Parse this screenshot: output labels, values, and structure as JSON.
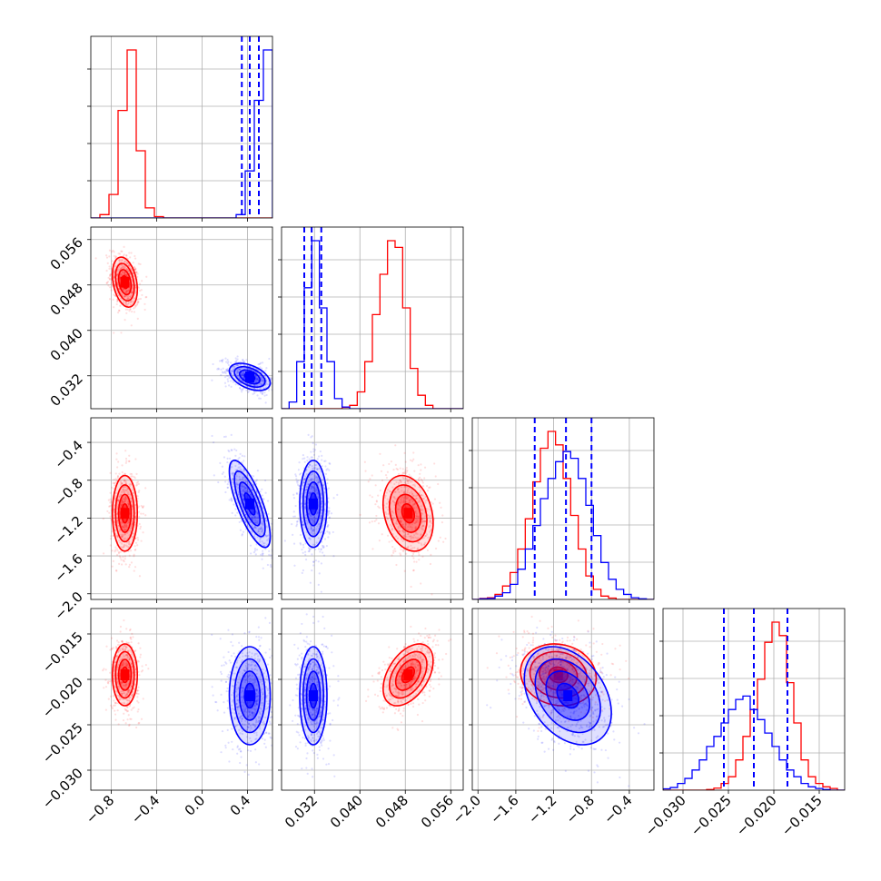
{
  "colors": {
    "red": "#ff0000",
    "blue": "#0000ff",
    "grid": "#b0b0b0",
    "frame": "#000000"
  },
  "chart_data": {
    "type": "corner",
    "grid": true,
    "parameters": [
      {
        "range": [
          -0.98,
          0.62
        ],
        "ticks": [
          -0.8,
          -0.4,
          0.0,
          0.4
        ],
        "tick_labels": [
          "−0.8",
          "−0.4",
          "0.0",
          "0.4"
        ]
      },
      {
        "range": [
          0.0262,
          0.0582
        ],
        "ticks": [
          0.032,
          0.04,
          0.048,
          0.056
        ],
        "tick_labels": [
          "0.032",
          "0.040",
          "0.048",
          "0.056"
        ]
      },
      {
        "range": [
          -2.06,
          -0.14
        ],
        "ticks": [
          -2.0,
          -1.6,
          -1.2,
          -0.8,
          -0.4
        ],
        "tick_labels": [
          "−2.0",
          "−1.6",
          "−1.2",
          "−0.8",
          "−0.4"
        ]
      },
      {
        "range": [
          -0.0322,
          -0.0122
        ],
        "ticks": [
          -0.03,
          -0.025,
          -0.02,
          -0.015
        ],
        "tick_labels": [
          "−0.030",
          "−0.025",
          "−0.020",
          "−0.015"
        ]
      }
    ],
    "series": [
      {
        "color": "red",
        "means": [
          -0.68,
          0.0485,
          -1.15,
          -0.0195
        ],
        "sds": [
          0.055,
          0.0022,
          0.2,
          0.0017
        ],
        "correlations": [
          [
            1.0,
            -0.3,
            0.0,
            0.0
          ],
          [
            -0.3,
            1.0,
            -0.25,
            0.45
          ],
          [
            0.0,
            -0.25,
            1.0,
            -0.1
          ],
          [
            0.0,
            0.45,
            -0.1,
            1.0
          ]
        ]
      },
      {
        "color": "blue",
        "means": [
          0.42,
          0.0318,
          -1.05,
          -0.0218
        ],
        "sds": [
          0.09,
          0.0012,
          0.23,
          0.0027
        ],
        "correlations": [
          [
            1.0,
            -0.45,
            -0.75,
            0.0
          ],
          [
            -0.45,
            1.0,
            0.0,
            0.0
          ],
          [
            -0.75,
            0.0,
            1.0,
            -0.35
          ],
          [
            0.0,
            0.0,
            -0.35,
            1.0
          ]
        ]
      }
    ],
    "diagonal_histograms": [
      {
        "bins": [
          -0.98,
          0.62,
          20
        ],
        "red": [
          0,
          1,
          7,
          32,
          50,
          20,
          3,
          0.4,
          0,
          0,
          0,
          0,
          0,
          0,
          0,
          0,
          0,
          0,
          0,
          0
        ],
        "blue": [
          0,
          0,
          0,
          0,
          0,
          0,
          0,
          0,
          0,
          0,
          0,
          0,
          0,
          0,
          0,
          0,
          1,
          14,
          35,
          50
        ],
        "blue_quantile_lines": [
          0.35,
          0.42,
          0.5
        ]
      },
      {
        "bins": [
          0.0262,
          0.0582,
          24
        ],
        "red": [
          0,
          0,
          0,
          0,
          0,
          0,
          0,
          0,
          0.4,
          1,
          5,
          14,
          28,
          40,
          50,
          48,
          30,
          12,
          4,
          1,
          0,
          0,
          0,
          0
        ],
        "blue": [
          0,
          2,
          14,
          36,
          50,
          30,
          14,
          3,
          0.5,
          0,
          0,
          0,
          0,
          0,
          0,
          0,
          0,
          0,
          0,
          0,
          0,
          0,
          0,
          0
        ],
        "blue_quantile_lines": [
          0.0302,
          0.0315,
          0.0332
        ]
      },
      {
        "bins": [
          -2.06,
          -0.14,
          24
        ],
        "red": [
          0,
          0.3,
          0.5,
          1.5,
          4,
          8,
          15,
          24,
          35,
          45,
          50,
          46,
          36,
          25,
          15,
          7,
          3,
          1,
          0.4,
          0,
          0,
          0,
          0,
          0
        ],
        "blue": [
          0,
          0.2,
          0.3,
          1,
          2,
          4.5,
          9,
          15,
          22,
          30,
          36,
          41,
          44,
          42,
          36,
          28,
          19,
          11,
          6,
          3,
          1.5,
          0.5,
          0.2,
          0
        ],
        "blue_quantile_lines": [
          -1.4,
          -1.07,
          -0.8
        ]
      },
      {
        "bins": [
          -0.0322,
          -0.0122,
          25
        ],
        "red": [
          0,
          0,
          0,
          0,
          0,
          0,
          0.2,
          0.6,
          2,
          4,
          9,
          16,
          24,
          33,
          44,
          50,
          46,
          32,
          20,
          9,
          4,
          2,
          1,
          0.5,
          0
        ],
        "blue": [
          0.4,
          0.8,
          2,
          3.5,
          6,
          9,
          13,
          16,
          20,
          24,
          27,
          28,
          24,
          21,
          17,
          13,
          9,
          6,
          4,
          2,
          1,
          0.5,
          0.2,
          0,
          0
        ],
        "blue_quantile_lines": [
          -0.0255,
          -0.0222,
          -0.0185
        ]
      }
    ]
  }
}
